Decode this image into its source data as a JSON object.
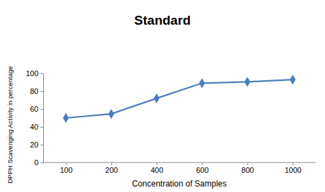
{
  "chart_data": {
    "type": "line",
    "title": "Standard",
    "x_label": "Concentration of Samples",
    "y_label": "DPPH Scavenging Activity in percentage",
    "categories": [
      "100",
      "200",
      "400",
      "600",
      "800",
      "1000"
    ],
    "values": [
      50,
      54.5,
      72,
      89,
      90.5,
      93
    ],
    "color": "#4a7ebb",
    "marker": "diamond",
    "ylim": [
      0,
      100
    ],
    "yticks": [
      0,
      20,
      40,
      60,
      80,
      100
    ],
    "grid": false
  }
}
